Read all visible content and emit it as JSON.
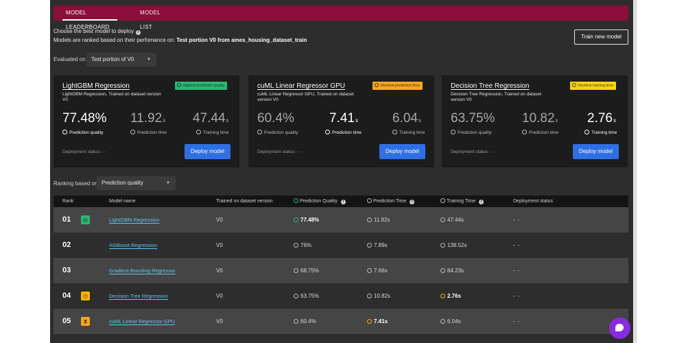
{
  "tabs": [
    {
      "label": "Model leaderboard",
      "active": true
    },
    {
      "label": "Model list",
      "active": false
    }
  ],
  "header": {
    "choose_text": "Choose the best model to deploy",
    "ranked_prefix": "Models are ranked based on their perfomance on:",
    "ranked_value": "Test portion V0 from ames_housing_dataset_train",
    "train_button": "Train new model"
  },
  "evaluated": {
    "label": "Evaluated on",
    "value": "Test portion of V0"
  },
  "ranking": {
    "label": "Ranking based on",
    "value": "Prediction quality"
  },
  "metric_labels": {
    "quality": "Prediction quality",
    "pred_time": "Prediction time",
    "train_time": "Training time",
    "deployment_status": "Deployment status: - -",
    "deploy_button": "Deploy model",
    "time_unit": "s"
  },
  "cards": [
    {
      "title": "LightGBM Regression",
      "subtitle": "LightGBM Regression, Trained on dataset version V0",
      "badge": "Highest prediction quality",
      "badge_color": "#2bb673",
      "quality": "77.48%",
      "pred_time": "11.92",
      "train_time": "47.44"
    },
    {
      "title": "cuML Linear Regressor GPU",
      "subtitle": "cuML Linear Regressor GPU, Trained on dataset version V0",
      "badge": "Shortest prediction time",
      "badge_color": "#f5a623",
      "quality": "60.4%",
      "pred_time": "7.41",
      "train_time": "6.04"
    },
    {
      "title": "Decision Tree Regression",
      "subtitle": "Decision Tree Regression, Trained on dataset version V0",
      "badge": "Shortest training time",
      "badge_color": "#f7d215",
      "quality": "63.75%",
      "pred_time": "10.82",
      "train_time": "2.76"
    }
  ],
  "table": {
    "headers": {
      "rank": "Rank",
      "model": "Model name",
      "version": "Trained on dataset version",
      "quality": "Prediction Quality",
      "pred_time": "Prediction Time",
      "train_time": "Training Time",
      "status": "Deployment status"
    },
    "rows": [
      {
        "rank": "01",
        "model": "LightGBM Regression",
        "version": "V0",
        "quality": "77.48%",
        "pred_time": "11.92s",
        "train_time": "47.44s",
        "status": "- -"
      },
      {
        "rank": "02",
        "model": "XGBoost Regression",
        "version": "V0",
        "quality": "76%",
        "pred_time": "7.89s",
        "train_time": "138.52s",
        "status": "- -"
      },
      {
        "rank": "03",
        "model": "Gradient Boosting Regressor",
        "version": "V0",
        "quality": "68.75%",
        "pred_time": "7.66s",
        "train_time": "84.23s",
        "status": "- -"
      },
      {
        "rank": "04",
        "model": "Decision Tree Regression",
        "version": "V0",
        "quality": "63.75%",
        "pred_time": "10.82s",
        "train_time": "2.76s",
        "status": "- -"
      },
      {
        "rank": "05",
        "model": "cuML Linear Regressor GPU",
        "version": "V0",
        "quality": "60.4%",
        "pred_time": "7.41s",
        "train_time": "6.04s",
        "status": "- -"
      }
    ]
  },
  "colors": {
    "tab_bar": "#8b0e3a",
    "background": "#2d2d2d",
    "card": "#1c1c1c",
    "primary_button": "#2f6fe3",
    "link": "#5ec9f0",
    "chat": "#8a2be2"
  }
}
